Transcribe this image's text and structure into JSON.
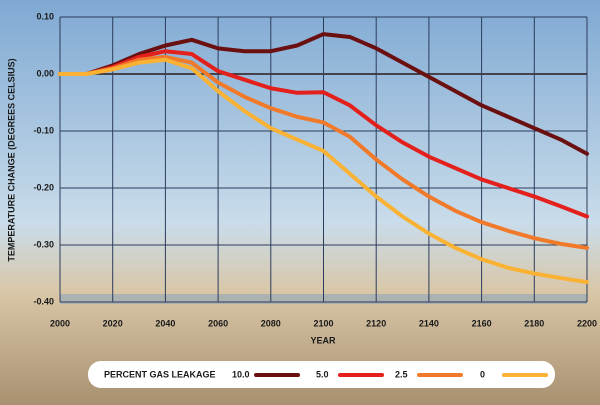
{
  "chart_data": {
    "type": "line",
    "y_label": "TEMPERATURE  CHANGE (DEGREES CELSIUS)",
    "x_label": "YEAR",
    "legend_title": "PERCENT GAS LEAKAGE",
    "x": [
      2000,
      2010,
      2020,
      2030,
      2040,
      2050,
      2060,
      2070,
      2080,
      2090,
      2100,
      2110,
      2120,
      2130,
      2140,
      2150,
      2160,
      2170,
      2180,
      2190,
      2200
    ],
    "series": [
      {
        "name": "10.0",
        "color": "#6b1010",
        "values": [
          0,
          0,
          0.015,
          0.035,
          0.05,
          0.06,
          0.045,
          0.04,
          0.04,
          0.05,
          0.07,
          0.065,
          0.045,
          0.02,
          -0.005,
          -0.03,
          -0.055,
          -0.075,
          -0.095,
          -0.115,
          -0.14
        ]
      },
      {
        "name": "5.0",
        "color": "#e3201b",
        "values": [
          0,
          0,
          0.012,
          0.03,
          0.04,
          0.035,
          0.005,
          -0.01,
          -0.025,
          -0.033,
          -0.032,
          -0.055,
          -0.09,
          -0.12,
          -0.145,
          -0.165,
          -0.185,
          -0.2,
          -0.215,
          -0.232,
          -0.25
        ]
      },
      {
        "name": "2.5",
        "color": "#f07a2a",
        "values": [
          0,
          0,
          0.01,
          0.025,
          0.03,
          0.02,
          -0.015,
          -0.04,
          -0.06,
          -0.075,
          -0.085,
          -0.11,
          -0.15,
          -0.185,
          -0.215,
          -0.24,
          -0.26,
          -0.275,
          -0.288,
          -0.298,
          -0.305
        ]
      },
      {
        "name": "0",
        "color": "#f9b233",
        "values": [
          0,
          0,
          0.008,
          0.02,
          0.025,
          0.01,
          -0.03,
          -0.065,
          -0.095,
          -0.115,
          -0.135,
          -0.175,
          -0.215,
          -0.25,
          -0.28,
          -0.305,
          -0.325,
          -0.34,
          -0.35,
          -0.358,
          -0.365
        ]
      }
    ],
    "xlim": [
      2000,
      2200
    ],
    "xticks": [
      2000,
      2020,
      2040,
      2060,
      2080,
      2100,
      2120,
      2140,
      2160,
      2180,
      2200
    ],
    "ylim": [
      -0.4,
      0.1
    ],
    "yticks": [
      {
        "value": 0.1,
        "label": "0.10"
      },
      {
        "value": 0,
        "label": "0.00"
      },
      {
        "value": -0.1,
        "label": "-0.10"
      },
      {
        "value": -0.2,
        "label": "-0.20"
      },
      {
        "value": -0.3,
        "label": "-0.30"
      },
      {
        "value": -0.4,
        "label": "-0.40"
      }
    ],
    "grid": true
  }
}
